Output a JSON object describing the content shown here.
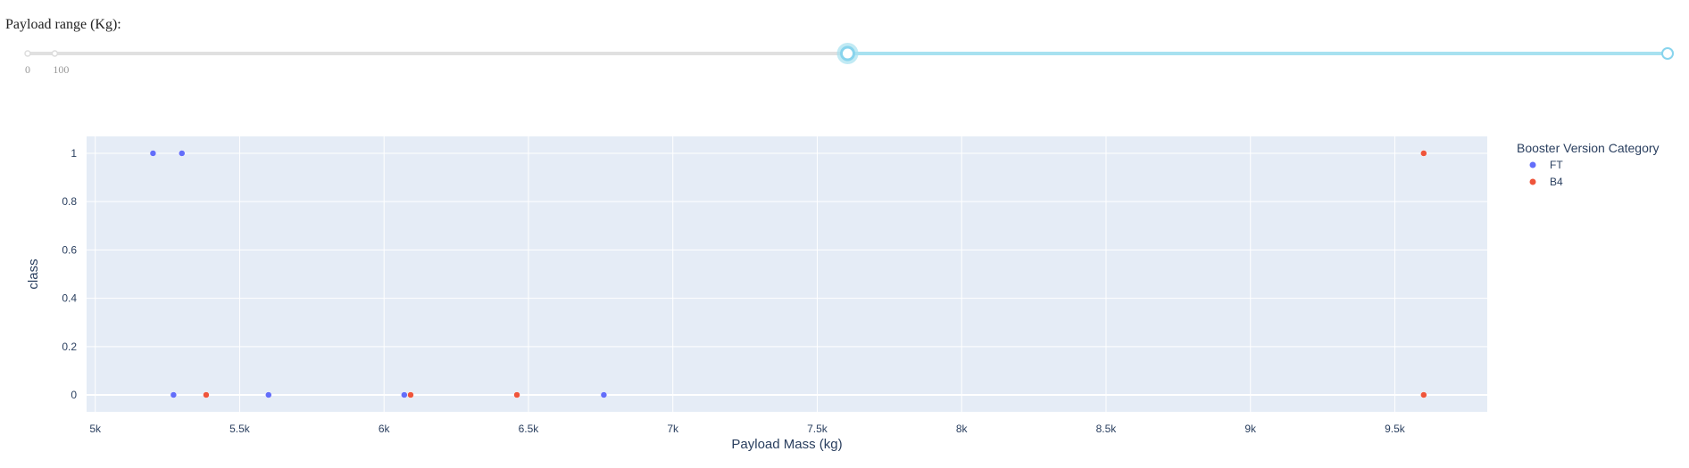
{
  "slider": {
    "label": "Payload range (Kg):",
    "mark_min": "0",
    "mark_next": "100",
    "min": 0,
    "max": 10000,
    "value_low": 5000,
    "value_high": 10000,
    "track_color": "#e0e0e0",
    "range_color": "#a7e1f0",
    "handle_color": "#88d4ed"
  },
  "chart_data": {
    "type": "scatter",
    "xlabel": "Payload Mass (kg)",
    "ylabel": "class",
    "xlim": [
      4970,
      9820
    ],
    "ylim": [
      -0.07,
      1.07
    ],
    "x_ticks": [
      5000,
      5500,
      6000,
      6500,
      7000,
      7500,
      8000,
      8500,
      9000,
      9500
    ],
    "x_tick_labels": [
      "5k",
      "5.5k",
      "6k",
      "6.5k",
      "7k",
      "7.5k",
      "8k",
      "8.5k",
      "9k",
      "9.5k"
    ],
    "y_ticks": [
      0,
      0.2,
      0.4,
      0.6,
      0.8,
      1
    ],
    "y_tick_labels": [
      "0",
      "0.2",
      "0.4",
      "0.6",
      "0.8",
      "1"
    ],
    "grid": true,
    "legend_title": "Booster Version Category",
    "legend_position": "right",
    "plot_bg": "#e5ecf6",
    "series": [
      {
        "name": "FT",
        "color": "#636efa",
        "points": [
          {
            "x": 5200,
            "y": 1
          },
          {
            "x": 5300,
            "y": 1
          },
          {
            "x": 5271,
            "y": 0
          },
          {
            "x": 5600,
            "y": 0
          },
          {
            "x": 6070,
            "y": 0
          },
          {
            "x": 6761,
            "y": 0
          }
        ]
      },
      {
        "name": "B4",
        "color": "#ef553b",
        "points": [
          {
            "x": 5384,
            "y": 0
          },
          {
            "x": 6092,
            "y": 0
          },
          {
            "x": 6460,
            "y": 0
          },
          {
            "x": 9600,
            "y": 1
          },
          {
            "x": 9600,
            "y": 0
          }
        ]
      }
    ]
  }
}
